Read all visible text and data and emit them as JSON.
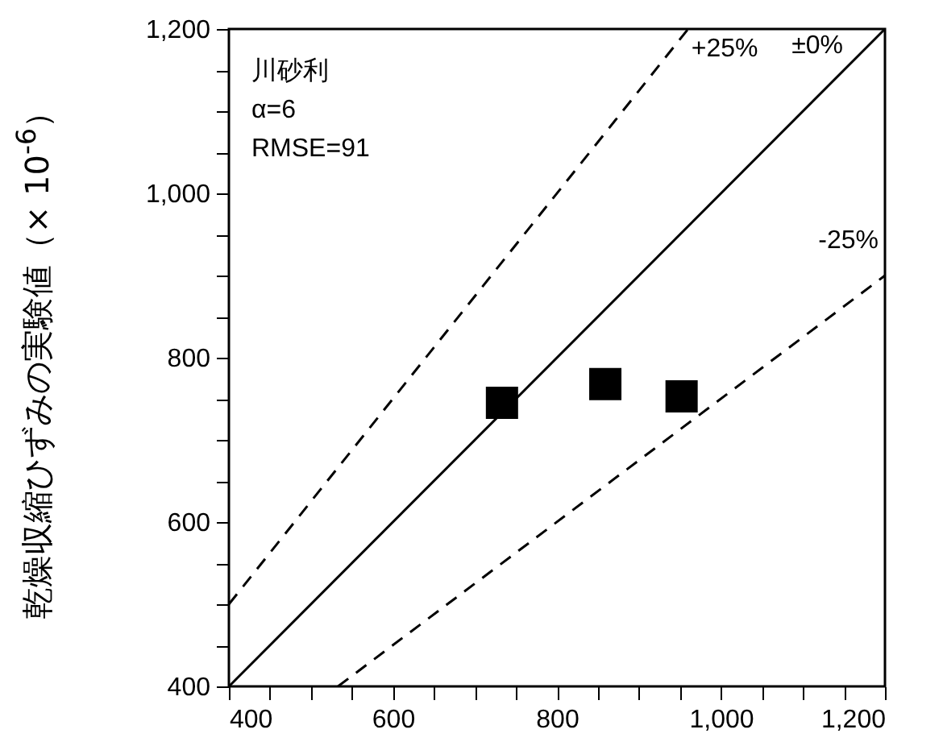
{
  "chart_data": {
    "type": "scatter",
    "ylabel": "乾燥収縮ひずみの実験値（× 10$^{-6}$）",
    "xlim": [
      400,
      1200
    ],
    "ylim": [
      400,
      1200
    ],
    "xticks": [
      400,
      {
        "value": 450,
        "label": null
      },
      {
        "value": 500,
        "label": null
      },
      {
        "value": 550,
        "label": null
      },
      600,
      {
        "value": 650,
        "label": null
      },
      {
        "value": 700,
        "label": null
      },
      {
        "value": 750,
        "label": null
      },
      800,
      {
        "value": 850,
        "label": null
      },
      {
        "value": 900,
        "label": null
      },
      {
        "value": 950,
        "label": null
      },
      {
        "value": 1000,
        "label": "1,000"
      },
      {
        "value": 1050,
        "label": null
      },
      {
        "value": 1100,
        "label": null
      },
      {
        "value": 1150,
        "label": null
      },
      {
        "value": 1200,
        "label": "1,200"
      }
    ],
    "yticks": [
      400,
      {
        "value": 450,
        "label": null
      },
      {
        "value": 500,
        "label": null
      },
      {
        "value": 550,
        "label": null
      },
      600,
      {
        "value": 650,
        "label": null
      },
      {
        "value": 700,
        "label": null
      },
      {
        "value": 750,
        "label": null
      },
      800,
      {
        "value": 850,
        "label": null
      },
      {
        "value": 900,
        "label": null
      },
      {
        "value": 950,
        "label": null
      },
      {
        "value": 1000,
        "label": "1,000"
      },
      {
        "value": 1050,
        "label": null
      },
      {
        "value": 1100,
        "label": null
      },
      {
        "value": 1150,
        "label": null
      },
      {
        "value": 1200,
        "label": "1,200"
      }
    ],
    "marker": "square",
    "annotations": [
      "川砂利",
      "α=6",
      "RMSE=91"
    ],
    "series": [
      {
        "type": "line",
        "name": "+25%",
        "color": "#000000",
        "line_style": "dashed",
        "marker": "none",
        "x": [
          400,
          960
        ],
        "values": [
          500,
          1200
        ]
      },
      {
        "type": "line",
        "name": "±0%",
        "color": "#000000",
        "line_style": "solid",
        "marker": "none",
        "x": [
          400,
          1200
        ],
        "values": [
          400,
          1200
        ]
      },
      {
        "type": "line",
        "name": "-25%",
        "color": "#000000",
        "line_style": "dashed",
        "marker": "none",
        "x": [
          533,
          1200
        ],
        "values": [
          400,
          900
        ]
      },
      {
        "color": "#000000",
        "x": [
          733,
          859,
          952
        ],
        "values": [
          745,
          768,
          753
        ]
      }
    ]
  }
}
